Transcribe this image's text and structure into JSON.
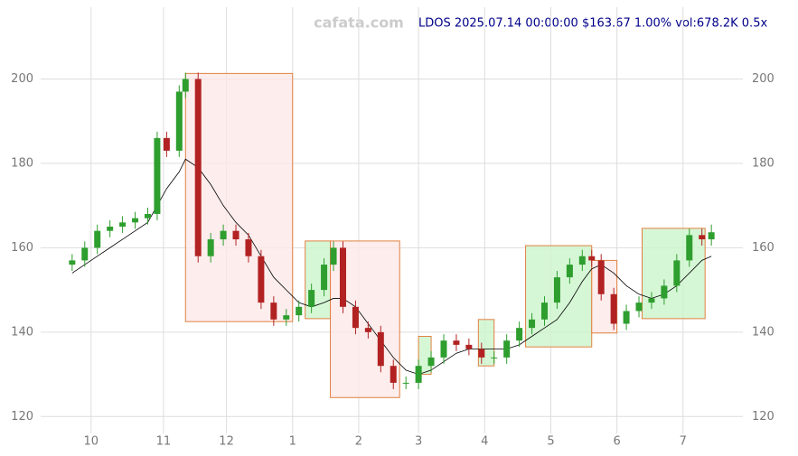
{
  "chart_data": {
    "type": "candlestick",
    "title": "LDOS 2025.07.14 00:00:00 $163.67 1.00% vol:678.2K 0.5x",
    "watermark": "cafata.com",
    "x": [
      0,
      4,
      8,
      12,
      16,
      20,
      24,
      27,
      30,
      34,
      36,
      40,
      44,
      48,
      52,
      56,
      60,
      64,
      68,
      72,
      76,
      80,
      83,
      86,
      90,
      94,
      98,
      102,
      106,
      110,
      114,
      118,
      122,
      126,
      130,
      134,
      138,
      142,
      146,
      150,
      154,
      158,
      162,
      165,
      168,
      172,
      176,
      180,
      184,
      188,
      192,
      196,
      200,
      203
    ],
    "open": [
      156,
      157,
      160,
      164,
      165,
      166,
      167,
      168,
      186,
      183,
      197,
      200,
      158,
      162,
      164,
      162,
      158,
      147,
      143,
      144,
      146,
      150,
      156,
      160,
      146,
      141,
      140,
      132,
      128,
      128,
      132,
      134,
      138,
      137,
      136,
      134,
      134,
      138,
      141,
      143,
      147,
      153,
      156,
      158,
      157,
      149,
      142,
      145,
      147,
      148,
      151,
      157,
      163,
      162
    ],
    "high": [
      158.5,
      161.5,
      165.5,
      166.5,
      167.5,
      168.5,
      169.5,
      187.5,
      187.5,
      198.5,
      201.5,
      201.5,
      163.5,
      165.5,
      165.5,
      163.5,
      159.5,
      148.5,
      145.5,
      147.5,
      151.5,
      157.5,
      161.5,
      161.5,
      147.5,
      142.5,
      141.5,
      133.5,
      129.5,
      133.5,
      135.5,
      139.5,
      139.5,
      138.5,
      137.5,
      135.5,
      139.5,
      142.5,
      144.5,
      148.5,
      154.5,
      157.5,
      159.5,
      159.5,
      158.5,
      150.5,
      146.5,
      148.5,
      149.5,
      152.5,
      158.5,
      164.5,
      164.5,
      165.5
    ],
    "low": [
      154.5,
      155.5,
      158.5,
      162.5,
      163.5,
      164.5,
      165.5,
      166.5,
      181.5,
      181.5,
      195.5,
      156.5,
      156.5,
      160.5,
      160.5,
      156.5,
      145.5,
      141.5,
      141.5,
      142.5,
      144.5,
      148.5,
      154.5,
      144.5,
      139.5,
      138.5,
      130.5,
      126.5,
      126.5,
      126.5,
      130.5,
      132.5,
      135.5,
      134.5,
      132.5,
      132.5,
      132.5,
      136.5,
      139.5,
      141.5,
      145.5,
      151.5,
      154.5,
      155.5,
      147.5,
      140.5,
      140.5,
      143.5,
      145.5,
      146.5,
      149.5,
      155.5,
      160.5,
      160.5
    ],
    "close": [
      157,
      160,
      164,
      165,
      166,
      167,
      168,
      186,
      183,
      197,
      200,
      158,
      162,
      164,
      162,
      158,
      147,
      143,
      144,
      146,
      150,
      156,
      160,
      146,
      141,
      140,
      132,
      128,
      128,
      132,
      134,
      138,
      137,
      136,
      134,
      134,
      138,
      141,
      143,
      147,
      153,
      156,
      158,
      157,
      149,
      142,
      145,
      147,
      148,
      151,
      157,
      163,
      162,
      163.67
    ],
    "ma": [
      154,
      156,
      158,
      160,
      162,
      164,
      166,
      170,
      174,
      178,
      181,
      179,
      175,
      170,
      166,
      163,
      158,
      153,
      150,
      147,
      146,
      147,
      148,
      148,
      146,
      142,
      138,
      134,
      131,
      130,
      131,
      133,
      135,
      136,
      136,
      136,
      136,
      137,
      139,
      141,
      143,
      147,
      152,
      155,
      156,
      154,
      151,
      149,
      148,
      149,
      151,
      154,
      157,
      158
    ],
    "ma_color": "#000000",
    "up_color": "#2e9e2e",
    "down_color": "#b22222",
    "zones": [
      {
        "x": [
          36,
          70
        ],
        "y": [
          142.5,
          201.3
        ],
        "color": "#fde8e8"
      },
      {
        "x": [
          74,
          82
        ],
        "y": [
          143.2,
          161.6
        ],
        "color": "#ccf5cc"
      },
      {
        "x": [
          82,
          104
        ],
        "y": [
          124.5,
          161.6
        ],
        "color": "#fde8e8"
      },
      {
        "x": [
          110,
          114
        ],
        "y": [
          130,
          139
        ],
        "color": "#ccf5cc"
      },
      {
        "x": [
          129,
          134
        ],
        "y": [
          132,
          143
        ],
        "color": "#ccf5cc"
      },
      {
        "x": [
          144,
          165
        ],
        "y": [
          136.5,
          160.5
        ],
        "color": "#ccf5cc"
      },
      {
        "x": [
          165,
          173
        ],
        "y": [
          139.8,
          157
        ],
        "color": "#fde8e8"
      },
      {
        "x": [
          181,
          201
        ],
        "y": [
          143.2,
          164.6
        ],
        "color": "#ccf5cc"
      }
    ],
    "zone_border": "#e08040",
    "xlim": [
      -10,
      213
    ],
    "xticks": [
      {
        "value": 6,
        "label": "10"
      },
      {
        "value": 29,
        "label": "11"
      },
      {
        "value": 49,
        "label": "12"
      },
      {
        "value": 70,
        "label": "1"
      },
      {
        "value": 91,
        "label": "2"
      },
      {
        "value": 110,
        "label": "3"
      },
      {
        "value": 131,
        "label": "4"
      },
      {
        "value": 152,
        "label": "5"
      },
      {
        "value": 173,
        "label": "6"
      },
      {
        "value": 194,
        "label": "7"
      }
    ],
    "ylim": [
      116,
      217
    ],
    "yticks": [
      120,
      140,
      160,
      180,
      200
    ],
    "grid": true
  }
}
